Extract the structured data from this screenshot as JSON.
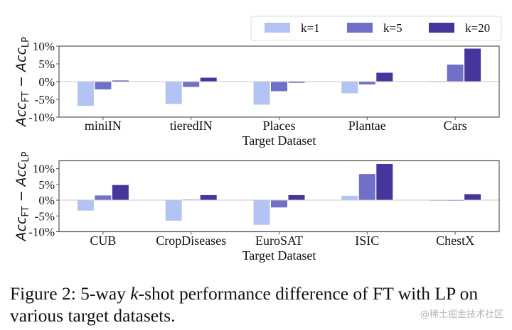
{
  "chart_data": [
    {
      "type": "bar",
      "title": "",
      "xlabel": "Target Dataset",
      "ylabel": "Acc_FT − Acc_LP",
      "ylabel_parts": {
        "main1": "Acc",
        "sub1": "FT",
        "minus": " − ",
        "main2": "Acc",
        "sub2": "LP"
      },
      "ylim": [
        -10,
        10
      ],
      "yticks": [
        -10,
        -5,
        0,
        5,
        10
      ],
      "ytick_labels": [
        "-10%",
        "-5%",
        "0%",
        "5%",
        "10%"
      ],
      "categories": [
        "miniIN",
        "tieredIN",
        "Places",
        "Plantae",
        "Cars"
      ],
      "series": [
        {
          "name": "k=1",
          "values": [
            -6.8,
            -6.3,
            -6.5,
            -3.3,
            -0.2
          ]
        },
        {
          "name": "k=5",
          "values": [
            -2.2,
            -1.5,
            -2.7,
            -0.8,
            4.8
          ]
        },
        {
          "name": "k=20",
          "values": [
            0.3,
            1.1,
            -0.3,
            2.5,
            9.3
          ]
        }
      ],
      "grid": false,
      "legend": "top-right (shared, above plots)"
    },
    {
      "type": "bar",
      "title": "",
      "xlabel": "Target Dataset",
      "ylabel": "Acc_FT − Acc_LP",
      "ylabel_parts": {
        "main1": "Acc",
        "sub1": "FT",
        "minus": " − ",
        "main2": "Acc",
        "sub2": "LP"
      },
      "ylim": [
        -10,
        12.5
      ],
      "yticks": [
        -10,
        -5,
        0,
        5,
        10
      ],
      "ytick_labels": [
        "-10%",
        "-5%",
        "0%",
        "5%",
        "10%"
      ],
      "categories": [
        "CUB",
        "CropDiseases",
        "EuroSAT",
        "ISIC",
        "ChestX"
      ],
      "series": [
        {
          "name": "k=1",
          "values": [
            -3.3,
            -6.5,
            -7.8,
            1.4,
            -0.2
          ]
        },
        {
          "name": "k=5",
          "values": [
            1.5,
            0.2,
            -2.3,
            8.3,
            0.0
          ]
        },
        {
          "name": "k=20",
          "values": [
            4.8,
            1.6,
            1.6,
            11.5,
            1.9
          ]
        }
      ],
      "grid": false,
      "legend": "none"
    }
  ],
  "legend": {
    "entries": [
      {
        "label": "k=1",
        "color": "#b3c3f3"
      },
      {
        "label": "k=5",
        "color": "#7070c8"
      },
      {
        "label": "k=20",
        "color": "#46369c"
      }
    ]
  },
  "series_colors": [
    "#b3c3f3",
    "#7070c8",
    "#46369c"
  ],
  "caption": {
    "prefix": "Figure 2: 5-way ",
    "k": "k",
    "rest": "-shot performance difference of FT with LP on various target datasets."
  },
  "watermark": "@稀土掘金技术社区"
}
